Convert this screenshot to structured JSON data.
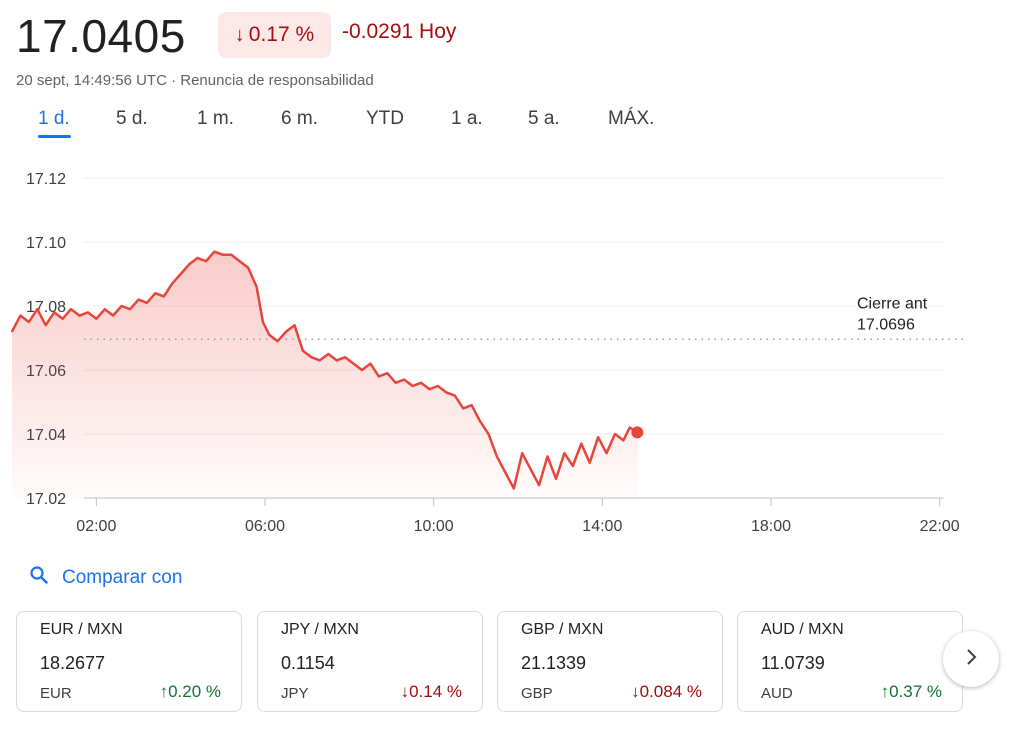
{
  "header": {
    "price": "17.0405",
    "change_pct": "0.17 %",
    "change_pct_arrow": "↓",
    "change_abs": "-0.0291 Hoy",
    "timestamp": "20 sept, 14:49:56 UTC · Renuncia de responsabilidad"
  },
  "tabs": [
    {
      "label": "1 d.",
      "active": true
    },
    {
      "label": "5 d.",
      "active": false
    },
    {
      "label": "1 m.",
      "active": false
    },
    {
      "label": "6 m.",
      "active": false
    },
    {
      "label": "YTD",
      "active": false
    },
    {
      "label": "1 a.",
      "active": false
    },
    {
      "label": "5 a.",
      "active": false
    },
    {
      "label": "MÁX.",
      "active": false
    }
  ],
  "compare": {
    "label": "Comparar con",
    "icon": "search-icon"
  },
  "cards": [
    {
      "pair": "EUR / MXN",
      "value": "18.2677",
      "currency": "EUR",
      "pct": "0.20 %",
      "direction": "up"
    },
    {
      "pair": "JPY / MXN",
      "value": "0.1154",
      "currency": "JPY",
      "pct": "0.14 %",
      "direction": "down"
    },
    {
      "pair": "GBP / MXN",
      "value": "21.1339",
      "currency": "GBP",
      "pct": "0.084 %",
      "direction": "down"
    },
    {
      "pair": "AUD / MXN",
      "value": "11.0739",
      "currency": "AUD",
      "pct": "0.37 %",
      "direction": "up"
    }
  ],
  "colors": {
    "line": "#e8453c",
    "negative": "#a50e0e",
    "positive": "#137333",
    "accent": "#1a73e8"
  },
  "chart_data": {
    "type": "area",
    "title": "",
    "xlabel": "",
    "ylabel": "",
    "x_ticks": [
      "02:00",
      "06:00",
      "10:00",
      "14:00",
      "18:00",
      "22:00"
    ],
    "y_ticks": [
      17.12,
      17.1,
      17.08,
      17.06,
      17.04,
      17.02
    ],
    "ylim": [
      17.02,
      17.12
    ],
    "xlim_hours": [
      0,
      24
    ],
    "reference_line": {
      "label": "Cierre ant",
      "value_label": "17.0696",
      "value": 17.0696
    },
    "grid": true,
    "series": [
      {
        "x_hours": [
          0.0,
          0.2,
          0.4,
          0.6,
          0.8,
          1.0,
          1.2,
          1.4,
          1.6,
          1.8,
          2.0,
          2.2,
          2.4,
          2.6,
          2.8,
          3.0,
          3.2,
          3.4,
          3.6,
          3.8,
          4.0,
          4.2,
          4.4,
          4.6,
          4.8,
          5.0,
          5.2,
          5.4,
          5.6,
          5.8,
          5.95,
          6.1,
          6.3,
          6.5,
          6.7,
          6.9,
          7.1,
          7.3,
          7.5,
          7.7,
          7.9,
          8.1,
          8.3,
          8.5,
          8.7,
          8.9,
          9.1,
          9.3,
          9.5,
          9.7,
          9.9,
          10.1,
          10.3,
          10.5,
          10.7,
          10.9,
          11.1,
          11.3,
          11.5,
          11.7,
          11.9,
          12.1,
          12.3,
          12.5,
          12.7,
          12.9,
          13.1,
          13.3,
          13.5,
          13.7,
          13.9,
          14.1,
          14.3,
          14.5,
          14.65,
          14.83
        ],
        "y": [
          17.072,
          17.077,
          17.075,
          17.079,
          17.074,
          17.078,
          17.076,
          17.079,
          17.077,
          17.078,
          17.076,
          17.079,
          17.077,
          17.08,
          17.079,
          17.082,
          17.081,
          17.084,
          17.083,
          17.087,
          17.09,
          17.093,
          17.095,
          17.094,
          17.097,
          17.096,
          17.096,
          17.094,
          17.092,
          17.086,
          17.075,
          17.071,
          17.069,
          17.072,
          17.074,
          17.066,
          17.064,
          17.063,
          17.065,
          17.063,
          17.064,
          17.062,
          17.06,
          17.062,
          17.058,
          17.059,
          17.056,
          17.057,
          17.055,
          17.056,
          17.054,
          17.055,
          17.053,
          17.052,
          17.048,
          17.049,
          17.044,
          17.04,
          17.033,
          17.028,
          17.023,
          17.034,
          17.029,
          17.024,
          17.033,
          17.026,
          17.034,
          17.03,
          17.037,
          17.031,
          17.039,
          17.034,
          17.04,
          17.038,
          17.042,
          17.0405
        ]
      }
    ]
  }
}
